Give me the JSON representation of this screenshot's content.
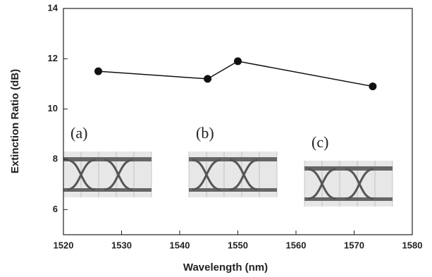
{
  "chart_data": {
    "type": "line",
    "x_label": "Wavelength (nm)",
    "y_label": "Extinction Ratio (dB)",
    "x": [
      1526,
      1544.8,
      1550,
      1573.2
    ],
    "series": [
      {
        "color": "#111111",
        "values": [
          11.5,
          11.2,
          11.9,
          10.9
        ]
      }
    ],
    "xlim": [
      1520,
      1580
    ],
    "xticks": [
      1520,
      1530,
      1540,
      1550,
      1560,
      1570,
      1580
    ],
    "ylim": [
      5,
      14
    ],
    "yticks": [
      6,
      8,
      10,
      12,
      14
    ],
    "insets": [
      "(a)",
      "(b)",
      "(c)"
    ]
  }
}
